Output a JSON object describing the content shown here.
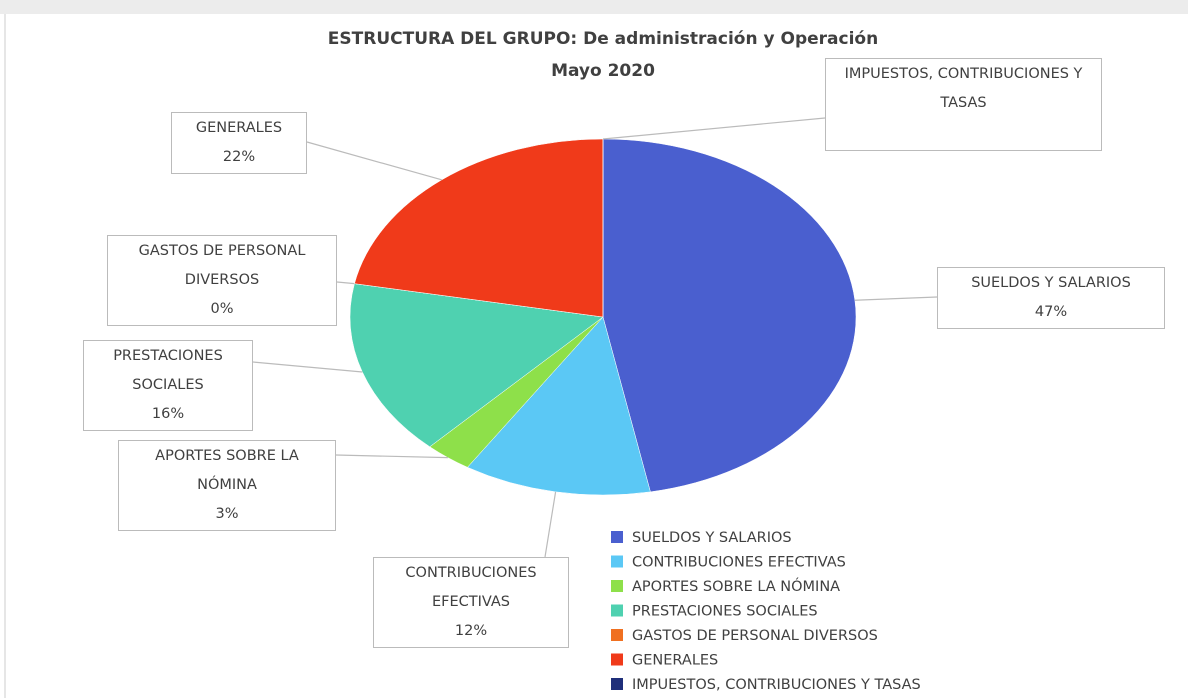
{
  "chart_data": {
    "type": "pie",
    "title": "ESTRUCTURA DEL GRUPO: De administración y Operación",
    "subtitle": "Mayo 2020",
    "categories": [
      "SUELDOS Y SALARIOS",
      "CONTRIBUCIONES EFECTIVAS",
      "APORTES SOBRE LA NÓMINA",
      "PRESTACIONES SOCIALES",
      "GASTOS DE PERSONAL DIVERSOS",
      "GENERALES",
      "IMPUESTOS, CONTRIBUCIONES Y TASAS"
    ],
    "values": [
      47,
      12,
      3,
      16,
      0,
      22,
      0
    ],
    "value_labels": [
      "47%",
      "12%",
      "3%",
      "16%",
      "0%",
      "22%",
      null
    ],
    "colors": [
      "#4a5fcf",
      "#5bc8f5",
      "#8ee04a",
      "#4fd1b0",
      "#f07020",
      "#f03a1a",
      "#1f2f7a"
    ],
    "legend": "bottom-right"
  }
}
